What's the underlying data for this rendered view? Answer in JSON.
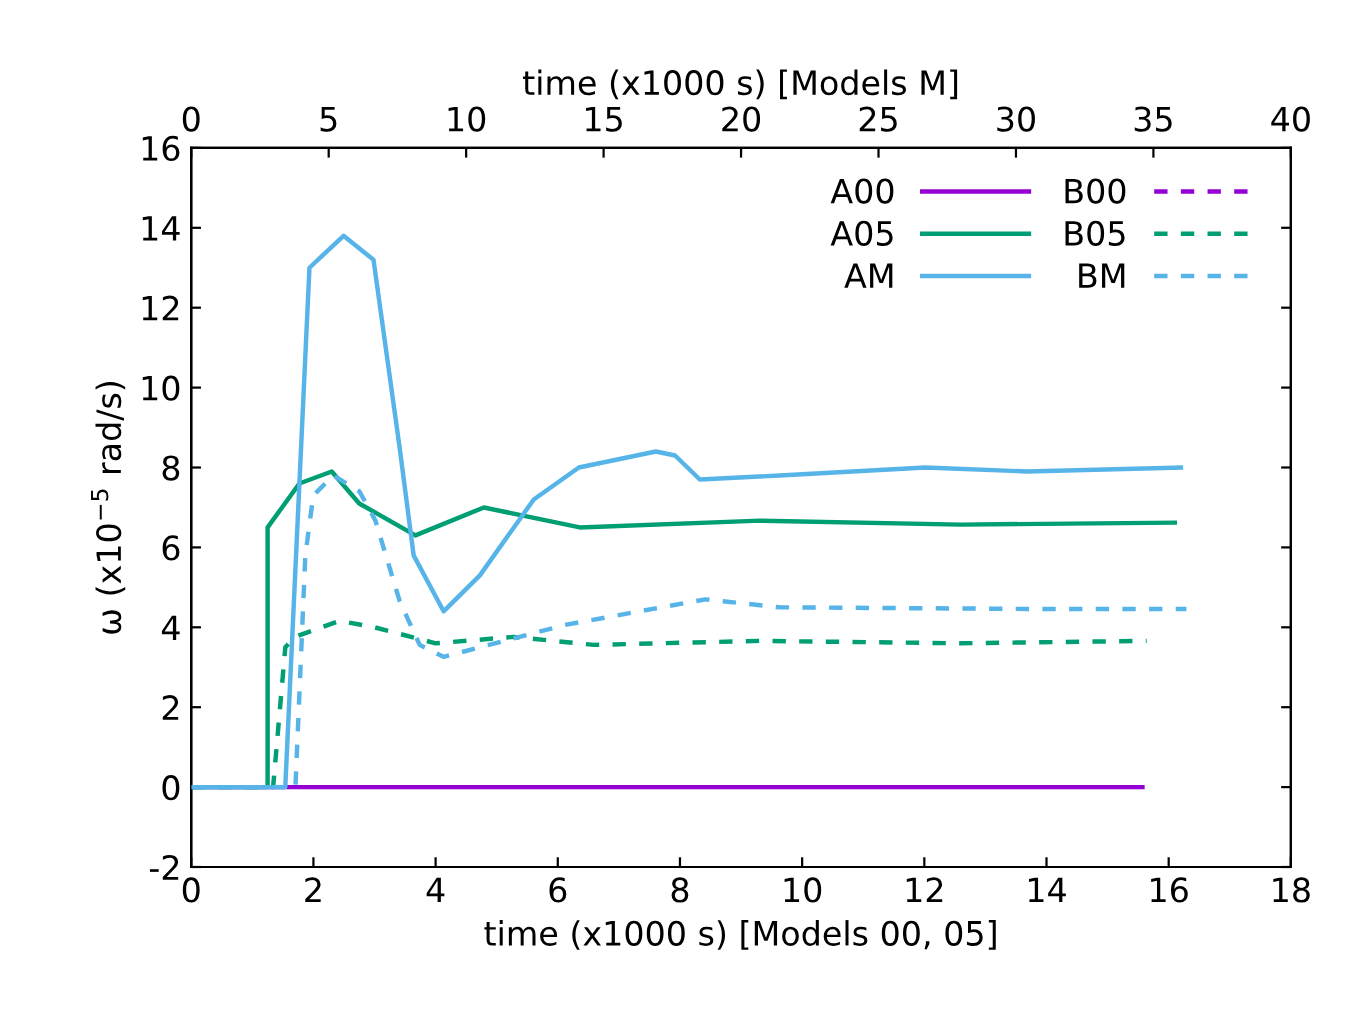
{
  "chart_data": {
    "type": "line",
    "xlabel": "time (x1000 s) [Models 00, 05]",
    "x2label": "time (x1000 s) [Models M]",
    "ylabel": "ω (x10$^{−5}$ rad/s)",
    "xlim": [
      0,
      18
    ],
    "xticks": [
      0,
      2,
      4,
      6,
      8,
      10,
      12,
      14,
      16,
      18
    ],
    "x2lim": [
      0,
      40
    ],
    "x2ticks": [
      0,
      5,
      10,
      15,
      20,
      25,
      30,
      35,
      40
    ],
    "ylim": [
      -2,
      16
    ],
    "yticks": [
      -2,
      0,
      2,
      4,
      6,
      8,
      10,
      12,
      14,
      16
    ],
    "legend": "top right",
    "grid": false,
    "series": [
      {
        "name": "A00",
        "color": "#9400d3",
        "line_style": "solid",
        "x": [
          0,
          2,
          4,
          6,
          8,
          10,
          12,
          14,
          15.57
        ],
        "values": [
          0,
          0,
          0,
          0,
          0,
          0,
          0,
          0,
          0
        ]
      },
      {
        "name": "B00",
        "color": "#9400d3",
        "line_style": "dashed"
      },
      {
        "name": "A05",
        "color": "#009e73",
        "line_style": "solid",
        "x": [
          0,
          1.25,
          1.25,
          1.77,
          2.3,
          2.75,
          3.67,
          4.79,
          6.36,
          9.31,
          12.6,
          16.1
        ],
        "values": [
          0,
          0,
          6.5,
          7.6,
          7.9,
          7.1,
          6.3,
          7.0,
          6.5,
          6.67,
          6.57,
          6.62
        ]
      },
      {
        "name": "B05",
        "color": "#009e73",
        "line_style": "dashed",
        "x": [
          0,
          1.34,
          1.54,
          1.7,
          2.43,
          3.0,
          4.0,
          5.28,
          6.59,
          9.31,
          12.6,
          15.64
        ],
        "values": [
          0,
          0,
          3.5,
          3.76,
          4.16,
          4.0,
          3.6,
          3.76,
          3.56,
          3.66,
          3.6,
          3.66
        ]
      },
      {
        "name": "AM",
        "color": "#56b4e9",
        "line_style": "solid",
        "axis": "x2",
        "x": [
          0,
          3.42,
          4.3,
          5.54,
          6.63,
          7.58,
          8.09,
          9.18,
          10.5,
          12.46,
          14.1,
          16.9,
          17.6,
          18.5,
          21.4,
          26.7,
          30.4,
          36.0
        ],
        "values": [
          0,
          0,
          13.0,
          13.8,
          13.2,
          8.5,
          5.8,
          4.4,
          5.3,
          7.2,
          8.0,
          8.4,
          8.3,
          7.7,
          7.8,
          8.0,
          7.9,
          8.0
        ]
      },
      {
        "name": "BM",
        "color": "#56b4e9",
        "line_style": "dashed",
        "axis": "x2",
        "x": [
          0,
          3.79,
          4.15,
          4.44,
          5.17,
          6.12,
          6.7,
          7.58,
          8.31,
          9.18,
          10.5,
          13.6,
          18.7,
          21.4,
          30.4,
          36.2
        ],
        "values": [
          0,
          0,
          5.8,
          7.3,
          7.8,
          7.4,
          6.67,
          4.66,
          3.56,
          3.26,
          3.5,
          4.06,
          4.7,
          4.5,
          4.46,
          4.46
        ]
      }
    ]
  }
}
